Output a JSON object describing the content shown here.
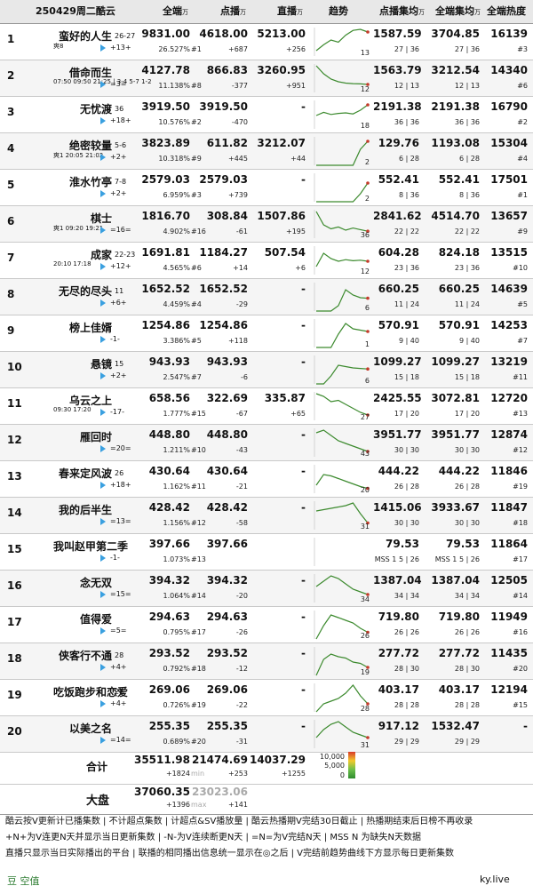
{
  "header": {
    "date_title": "250429周二酷云",
    "col_all": "全端",
    "col_click": "点播",
    "col_live": "直播",
    "col_trend": "趋势",
    "col_click_ep": "点播集均",
    "col_all_ep": "全端集均",
    "col_heat": "全端热度",
    "unit": "万"
  },
  "rows": [
    {
      "rank": "1",
      "title": "蛮好的人生",
      "eps": "26-27",
      "delta": "+13+",
      "icons": "爽8",
      "total": "9831.00",
      "share": "26.527%",
      "click": "4618.00",
      "click_rank": "#1",
      "click_chg": "+687",
      "live": "5213.00",
      "live_chg": "+256",
      "trend_end": "13",
      "click_ep": "1587.59",
      "click_ep_r": "27 | 36",
      "all_ep": "3704.85",
      "all_ep_r": "27 | 36",
      "heat": "16139",
      "heat_r": "#3",
      "trend": [
        200,
        420,
        600,
        520,
        780,
        960,
        1000,
        900
      ]
    },
    {
      "rank": "2",
      "title": "借命而生",
      "eps": "",
      "delta": "=3=",
      "icons": "07:50 09:50 21:25 | 3-4 5-7 1-2",
      "total": "4127.78",
      "share": "11.138%",
      "click": "866.83",
      "click_rank": "#8",
      "click_chg": "-377",
      "live": "3260.95",
      "live_chg": "+951",
      "trend_end": "12",
      "click_ep": "1563.79",
      "click_ep_r": "12 | 13",
      "all_ep": "3212.54",
      "all_ep_r": "12 | 13",
      "heat": "14340",
      "heat_r": "#6",
      "trend": [
        1000,
        700,
        500,
        400,
        350,
        330,
        320,
        300
      ]
    },
    {
      "rank": "3",
      "title": "无忧渡",
      "eps": "36",
      "delta": "+18+",
      "icons": "",
      "total": "3919.50",
      "share": "10.576%",
      "click": "3919.50",
      "click_rank": "#2",
      "click_chg": "-470",
      "live": "-",
      "live_chg": "",
      "trend_end": "18",
      "click_ep": "2191.38",
      "click_ep_r": "36 | 36",
      "all_ep": "2191.38",
      "all_ep_r": "36 | 36",
      "heat": "16790",
      "heat_r": "#2",
      "trend": [
        500,
        620,
        540,
        580,
        600,
        560,
        700,
        900
      ]
    },
    {
      "rank": "4",
      "title": "绝密较量",
      "eps": "5-6",
      "delta": "+2+",
      "icons": "爽1 20:05 21:02",
      "total": "3823.89",
      "share": "10.318%",
      "click": "611.82",
      "click_rank": "#9",
      "click_chg": "+445",
      "live": "3212.07",
      "live_chg": "+44",
      "trend_end": "2",
      "click_ep": "129.76",
      "click_ep_r": "6 | 28",
      "all_ep": "1193.08",
      "all_ep_r": "6 | 28",
      "heat": "15304",
      "heat_r": "#4",
      "trend": [
        0,
        0,
        0,
        0,
        0,
        0,
        600,
        900
      ]
    },
    {
      "rank": "5",
      "title": "淮水竹亭",
      "eps": "7-8",
      "delta": "+2+",
      "icons": "",
      "total": "2579.03",
      "share": "6.959%",
      "click": "2579.03",
      "click_rank": "#3",
      "click_chg": "+739",
      "live": "-",
      "live_chg": "",
      "trend_end": "2",
      "click_ep": "552.41",
      "click_ep_r": "8 | 36",
      "all_ep": "552.41",
      "all_ep_r": "8 | 36",
      "heat": "17501",
      "heat_r": "#1",
      "trend": [
        0,
        0,
        0,
        0,
        0,
        0,
        300,
        700
      ]
    },
    {
      "rank": "6",
      "title": "棋士",
      "eps": "",
      "delta": "=16=",
      "icons": "爽1 09:20 19:21",
      "total": "1816.70",
      "share": "4.902%",
      "click": "308.84",
      "click_rank": "#16",
      "click_chg": "-61",
      "live": "1507.86",
      "live_chg": "+195",
      "trend_end": "36",
      "click_ep": "2841.62",
      "click_ep_r": "22 | 22",
      "all_ep": "4514.70",
      "all_ep_r": "22 | 22",
      "heat": "13657",
      "heat_r": "#9",
      "trend": [
        1000,
        500,
        350,
        420,
        300,
        380,
        320,
        260
      ]
    },
    {
      "rank": "7",
      "title": "成家",
      "eps": "22-23",
      "delta": "+12+",
      "icons": "20:10 17:18",
      "total": "1691.81",
      "share": "4.565%",
      "click": "1184.27",
      "click_rank": "#6",
      "click_chg": "+14",
      "live": "507.54",
      "live_chg": "+6",
      "trend_end": "12",
      "click_ep": "604.28",
      "click_ep_r": "23 | 36",
      "all_ep": "824.18",
      "all_ep_r": "23 | 36",
      "heat": "13515",
      "heat_r": "#10",
      "trend": [
        300,
        800,
        600,
        500,
        560,
        520,
        540,
        500
      ]
    },
    {
      "rank": "8",
      "title": "无尽的尽头",
      "eps": "11",
      "delta": "+6+",
      "icons": "",
      "total": "1652.52",
      "share": "4.459%",
      "click": "1652.52",
      "click_rank": "#4",
      "click_chg": "-29",
      "live": "-",
      "live_chg": "",
      "trend_end": "6",
      "click_ep": "660.25",
      "click_ep_r": "11 | 24",
      "all_ep": "660.25",
      "all_ep_r": "11 | 24",
      "heat": "14639",
      "heat_r": "#5",
      "trend": [
        0,
        0,
        0,
        200,
        800,
        600,
        500,
        480
      ]
    },
    {
      "rank": "9",
      "title": "榜上佳婿",
      "eps": "",
      "delta": "-1-",
      "icons": "",
      "total": "1254.86",
      "share": "3.386%",
      "click": "1254.86",
      "click_rank": "#5",
      "click_chg": "+118",
      "live": "-",
      "live_chg": "",
      "trend_end": "1",
      "click_ep": "570.91",
      "click_ep_r": "9 | 40",
      "all_ep": "570.91",
      "all_ep_r": "9 | 40",
      "heat": "14253",
      "heat_r": "#7",
      "trend": [
        0,
        0,
        0,
        500,
        900,
        700,
        650,
        600
      ]
    },
    {
      "rank": "10",
      "title": "悬镜",
      "eps": "15",
      "delta": "+2+",
      "icons": "",
      "total": "943.93",
      "share": "2.547%",
      "click": "943.93",
      "click_rank": "#7",
      "click_chg": "-6",
      "live": "-",
      "live_chg": "",
      "trend_end": "6",
      "click_ep": "1099.27",
      "click_ep_r": "15 | 18",
      "all_ep": "1099.27",
      "all_ep_r": "15 | 18",
      "heat": "13219",
      "heat_r": "#11",
      "trend": [
        0,
        0,
        300,
        700,
        650,
        600,
        580,
        560
      ]
    },
    {
      "rank": "11",
      "title": "乌云之上",
      "eps": "",
      "delta": "-17-",
      "icons": "09:30 17:20",
      "total": "658.56",
      "share": "1.777%",
      "click": "322.69",
      "click_rank": "#15",
      "click_chg": "-67",
      "live": "335.87",
      "live_chg": "+65",
      "trend_end": "27",
      "click_ep": "2425.55",
      "click_ep_r": "17 | 20",
      "all_ep": "3072.81",
      "all_ep_r": "17 | 20",
      "heat": "12720",
      "heat_r": "#13",
      "trend": [
        1000,
        900,
        700,
        750,
        600,
        450,
        300,
        200
      ]
    },
    {
      "rank": "12",
      "title": "雁回时",
      "eps": "",
      "delta": "=20=",
      "icons": "",
      "total": "448.80",
      "share": "1.211%",
      "click": "448.80",
      "click_rank": "#10",
      "click_chg": "-43",
      "live": "-",
      "live_chg": "",
      "trend_end": "43",
      "click_ep": "3951.77",
      "click_ep_r": "30 | 30",
      "all_ep": "3951.77",
      "all_ep_r": "30 | 30",
      "heat": "12874",
      "heat_r": "#12",
      "trend": [
        900,
        1000,
        800,
        600,
        500,
        400,
        300,
        200
      ]
    },
    {
      "rank": "13",
      "title": "春来定风波",
      "eps": "26",
      "delta": "+18+",
      "icons": "",
      "total": "430.64",
      "share": "1.162%",
      "click": "430.64",
      "click_rank": "#11",
      "click_chg": "-21",
      "live": "-",
      "live_chg": "",
      "trend_end": "20",
      "click_ep": "444.22",
      "click_ep_r": "26 | 28",
      "all_ep": "444.22",
      "all_ep_r": "26 | 28",
      "heat": "11846",
      "heat_r": "#19",
      "trend": [
        300,
        700,
        650,
        550,
        450,
        350,
        250,
        180
      ]
    },
    {
      "rank": "14",
      "title": "我的后半生",
      "eps": "",
      "delta": "=13=",
      "icons": "",
      "total": "428.42",
      "share": "1.156%",
      "click": "428.42",
      "click_rank": "#12",
      "click_chg": "-58",
      "live": "-",
      "live_chg": "",
      "trend_end": "31",
      "click_ep": "1415.06",
      "click_ep_r": "30 | 30",
      "all_ep": "3933.67",
      "all_ep_r": "30 | 30",
      "heat": "11847",
      "heat_r": "#18",
      "trend": [
        700,
        750,
        800,
        850,
        900,
        1000,
        600,
        250
      ]
    },
    {
      "rank": "15",
      "title": "我叫赵甲第二季",
      "eps": "",
      "delta": "-1-",
      "icons": "",
      "total": "397.66",
      "share": "1.073%",
      "click": "397.66",
      "click_rank": "#13",
      "click_chg": "",
      "live": "",
      "live_chg": "",
      "trend_end": "",
      "click_ep": "79.53",
      "click_ep_r": "MSS 1 5 | 26",
      "all_ep": "79.53",
      "all_ep_r": "MSS 1 5 | 26",
      "heat": "11864",
      "heat_r": "#17",
      "trend": []
    },
    {
      "rank": "16",
      "title": "念无双",
      "eps": "",
      "delta": "=15=",
      "icons": "",
      "total": "394.32",
      "share": "1.064%",
      "click": "394.32",
      "click_rank": "#14",
      "click_chg": "-20",
      "live": "-",
      "live_chg": "",
      "trend_end": "34",
      "click_ep": "1387.04",
      "click_ep_r": "34 | 34",
      "all_ep": "1387.04",
      "all_ep_r": "34 | 34",
      "heat": "12505",
      "heat_r": "#14",
      "trend": [
        600,
        800,
        1000,
        900,
        700,
        500,
        400,
        300
      ]
    },
    {
      "rank": "17",
      "title": "值得爱",
      "eps": "",
      "delta": "=5=",
      "icons": "",
      "total": "294.63",
      "share": "0.795%",
      "click": "294.63",
      "click_rank": "#17",
      "click_chg": "-26",
      "live": "-",
      "live_chg": "",
      "trend_end": "26",
      "click_ep": "719.80",
      "click_ep_r": "26 | 26",
      "all_ep": "719.80",
      "all_ep_r": "26 | 26",
      "heat": "11949",
      "heat_r": "#16",
      "trend": [
        0,
        500,
        900,
        800,
        700,
        600,
        400,
        250
      ]
    },
    {
      "rank": "18",
      "title": "侠客行不通",
      "eps": "28",
      "delta": "+4+",
      "icons": "",
      "total": "293.52",
      "share": "0.792%",
      "click": "293.52",
      "click_rank": "#18",
      "click_chg": "-12",
      "live": "-",
      "live_chg": "",
      "trend_end": "19",
      "click_ep": "277.72",
      "click_ep_r": "28 | 30",
      "all_ep": "277.72",
      "all_ep_r": "28 | 30",
      "heat": "11435",
      "heat_r": "#20",
      "trend": [
        0,
        600,
        800,
        700,
        650,
        500,
        450,
        300
      ]
    },
    {
      "rank": "19",
      "title": "吃饭跑步和恋爱",
      "eps": "28",
      "delta": "+4+",
      "icons": "",
      "total": "269.06",
      "share": "0.726%",
      "click": "269.06",
      "click_rank": "#19",
      "click_chg": "-22",
      "live": "-",
      "live_chg": "",
      "trend_end": "28",
      "click_ep": "403.17",
      "click_ep_r": "28 | 28",
      "all_ep": "403.17",
      "all_ep_r": "28 | 28",
      "heat": "12194",
      "heat_r": "#15",
      "trend": [
        0,
        300,
        400,
        500,
        700,
        1000,
        600,
        300
      ]
    },
    {
      "rank": "20",
      "title": "以美之名",
      "eps": "",
      "delta": "=14=",
      "icons": "",
      "total": "255.35",
      "share": "0.689%",
      "click": "255.35",
      "click_rank": "#20",
      "click_chg": "-31",
      "live": "-",
      "live_chg": "",
      "trend_end": "31",
      "click_ep": "917.12",
      "click_ep_r": "29 | 29",
      "all_ep": "1532.47",
      "all_ep_r": "29 | 29",
      "heat": "-",
      "heat_r": "",
      "trend": [
        400,
        700,
        900,
        1000,
        800,
        600,
        500,
        400
      ]
    }
  ],
  "summary": {
    "label": "合计",
    "total": "35511.98",
    "total_chg": "+1824",
    "click": "21474.69",
    "click_note": "min",
    "click_chg": "+253",
    "live": "14037.29",
    "live_chg": "+1255",
    "legend_10000": "10,000",
    "legend_5000": "5,000",
    "legend_0": "0"
  },
  "market": {
    "label": "大盘",
    "total": "37060.35",
    "total_chg": "+1396",
    "click": "23023.06",
    "click_note": "max",
    "click_chg": "+141"
  },
  "footer": {
    "line1": "酷云按V更新计已播集数 | 不计超点集数 | 计超点&SV播放量 | 酷云热播期V完结30日截止 | 热播期结束后日榜不再收录",
    "line2": "+N+为V连更N天并显示当日更新集数 | -N-为V连续断更N天 | =N=为V完结N天 | MSS N 为缺失N天数据",
    "line3": "直播只显示当日实际播出的平台 | 联播的相同播出信息统一显示在◎之后 | V完结前趋势曲线下方显示每日更新集数"
  },
  "brand": {
    "left": "豆 空值",
    "right": "ky.live"
  },
  "colors": {
    "line_green": "#3c8a2e",
    "accent_red": "#c43a2a",
    "accent_yellow": "#e8c52a"
  },
  "chart_data": {
    "type": "table",
    "title": "250429周二酷云",
    "columns": [
      "全端",
      "点播",
      "直播",
      "点播集均",
      "全端集均",
      "全端热度"
    ]
  }
}
